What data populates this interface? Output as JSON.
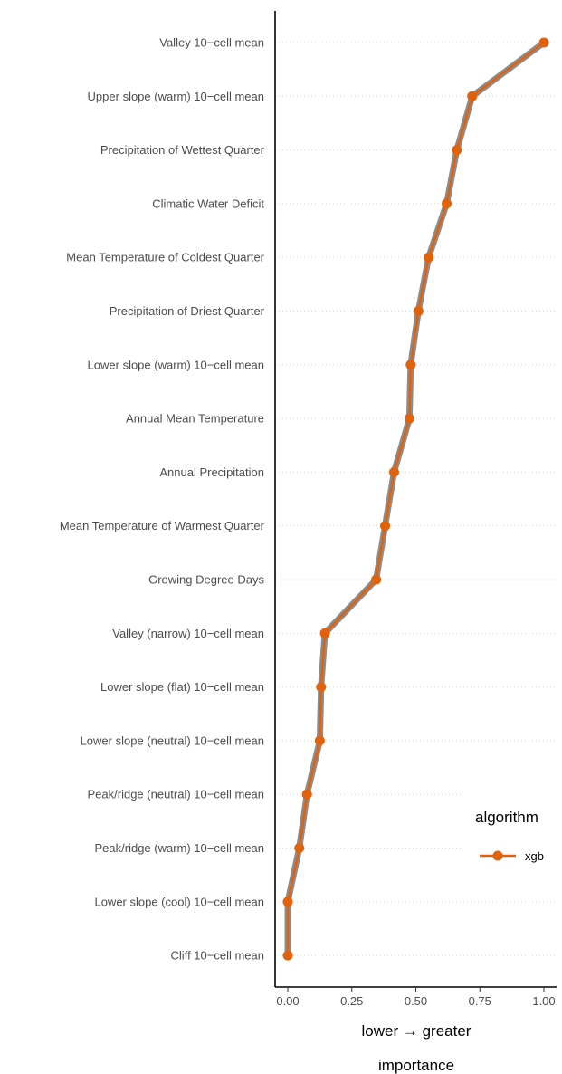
{
  "chart_data": {
    "type": "line",
    "orientation": "horizontal",
    "xlabel_line1": "lower → greater",
    "xlabel_line2": "importance",
    "xlim": [
      0,
      1
    ],
    "xticks": [
      "0.00",
      "0.25",
      "0.50",
      "0.75",
      "1.00"
    ],
    "xtick_values": [
      0,
      0.25,
      0.5,
      0.75,
      1.0
    ],
    "grid": "horizontal dotted",
    "legend": {
      "title": "algorithm",
      "position": "right",
      "entries": [
        "xgb"
      ]
    },
    "categories": [
      "Valley 10−cell mean",
      "Upper slope (warm) 10−cell mean",
      "Precipitation of Wettest Quarter",
      "Climatic Water Deficit",
      "Mean Temperature of Coldest Quarter",
      "Precipitation of Driest Quarter",
      "Lower slope (warm) 10−cell mean",
      "Annual Mean Temperature",
      "Annual Precipitation",
      "Mean Temperature of Warmest Quarter",
      "Growing Degree Days",
      "Valley (narrow) 10−cell mean",
      "Lower slope (flat) 10−cell mean",
      "Lower slope (neutral) 10−cell mean",
      "Peak/ridge (neutral) 10−cell mean",
      "Peak/ridge (warm) 10−cell mean",
      "Lower slope (cool) 10−cell mean",
      "Cliff 10−cell mean"
    ],
    "series": [
      {
        "name": "xgb",
        "color": "#e0620d",
        "values": [
          1.0,
          0.72,
          0.66,
          0.62,
          0.55,
          0.51,
          0.48,
          0.475,
          0.415,
          0.38,
          0.345,
          0.145,
          0.13,
          0.125,
          0.075,
          0.045,
          0.0,
          0.0
        ]
      }
    ],
    "underlay_color": "#8c8c8c"
  }
}
